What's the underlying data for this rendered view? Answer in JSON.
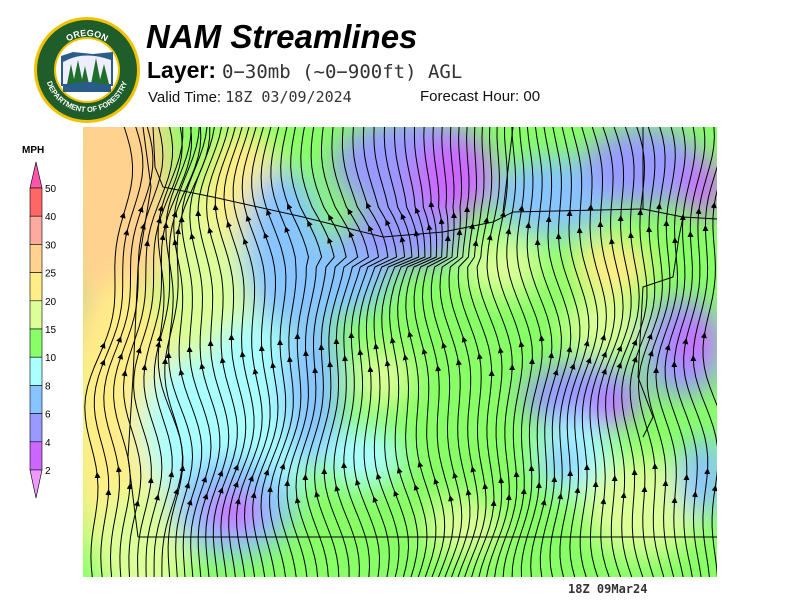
{
  "logo": {
    "top_text": "OREGON",
    "bottom_text": "DEPARTMENT OF FORESTRY",
    "colors": {
      "ring": "#1f5e2b",
      "border": "#f2c200"
    }
  },
  "header": {
    "title": "NAM Streamlines",
    "layer_label": "Layer:",
    "layer_value": "0−30mb (~0−900ft) AGL",
    "valid_label": "Valid Time:",
    "valid_value": "18Z 03/09/2024",
    "forecast_label": "Forecast Hour:",
    "forecast_value": "00"
  },
  "legend": {
    "unit": "MPH",
    "ticks": [
      "50",
      "40",
      "30",
      "25",
      "20",
      "15",
      "10",
      "8",
      "6",
      "4",
      "2"
    ],
    "colors": [
      "#ff6666",
      "#ffaaa0",
      "#ffd28f",
      "#ffee88",
      "#ddff99",
      "#88ff66",
      "#aaffff",
      "#88c4ff",
      "#9999ff",
      "#cc66ff"
    ],
    "over_color": "#ff55aa",
    "under_color": "#ee99ff"
  },
  "map": {
    "flow_direction": "predominantly south-to-north",
    "line_color": "#000000"
  },
  "footer": {
    "timestamp": "18Z 09Mar24"
  }
}
